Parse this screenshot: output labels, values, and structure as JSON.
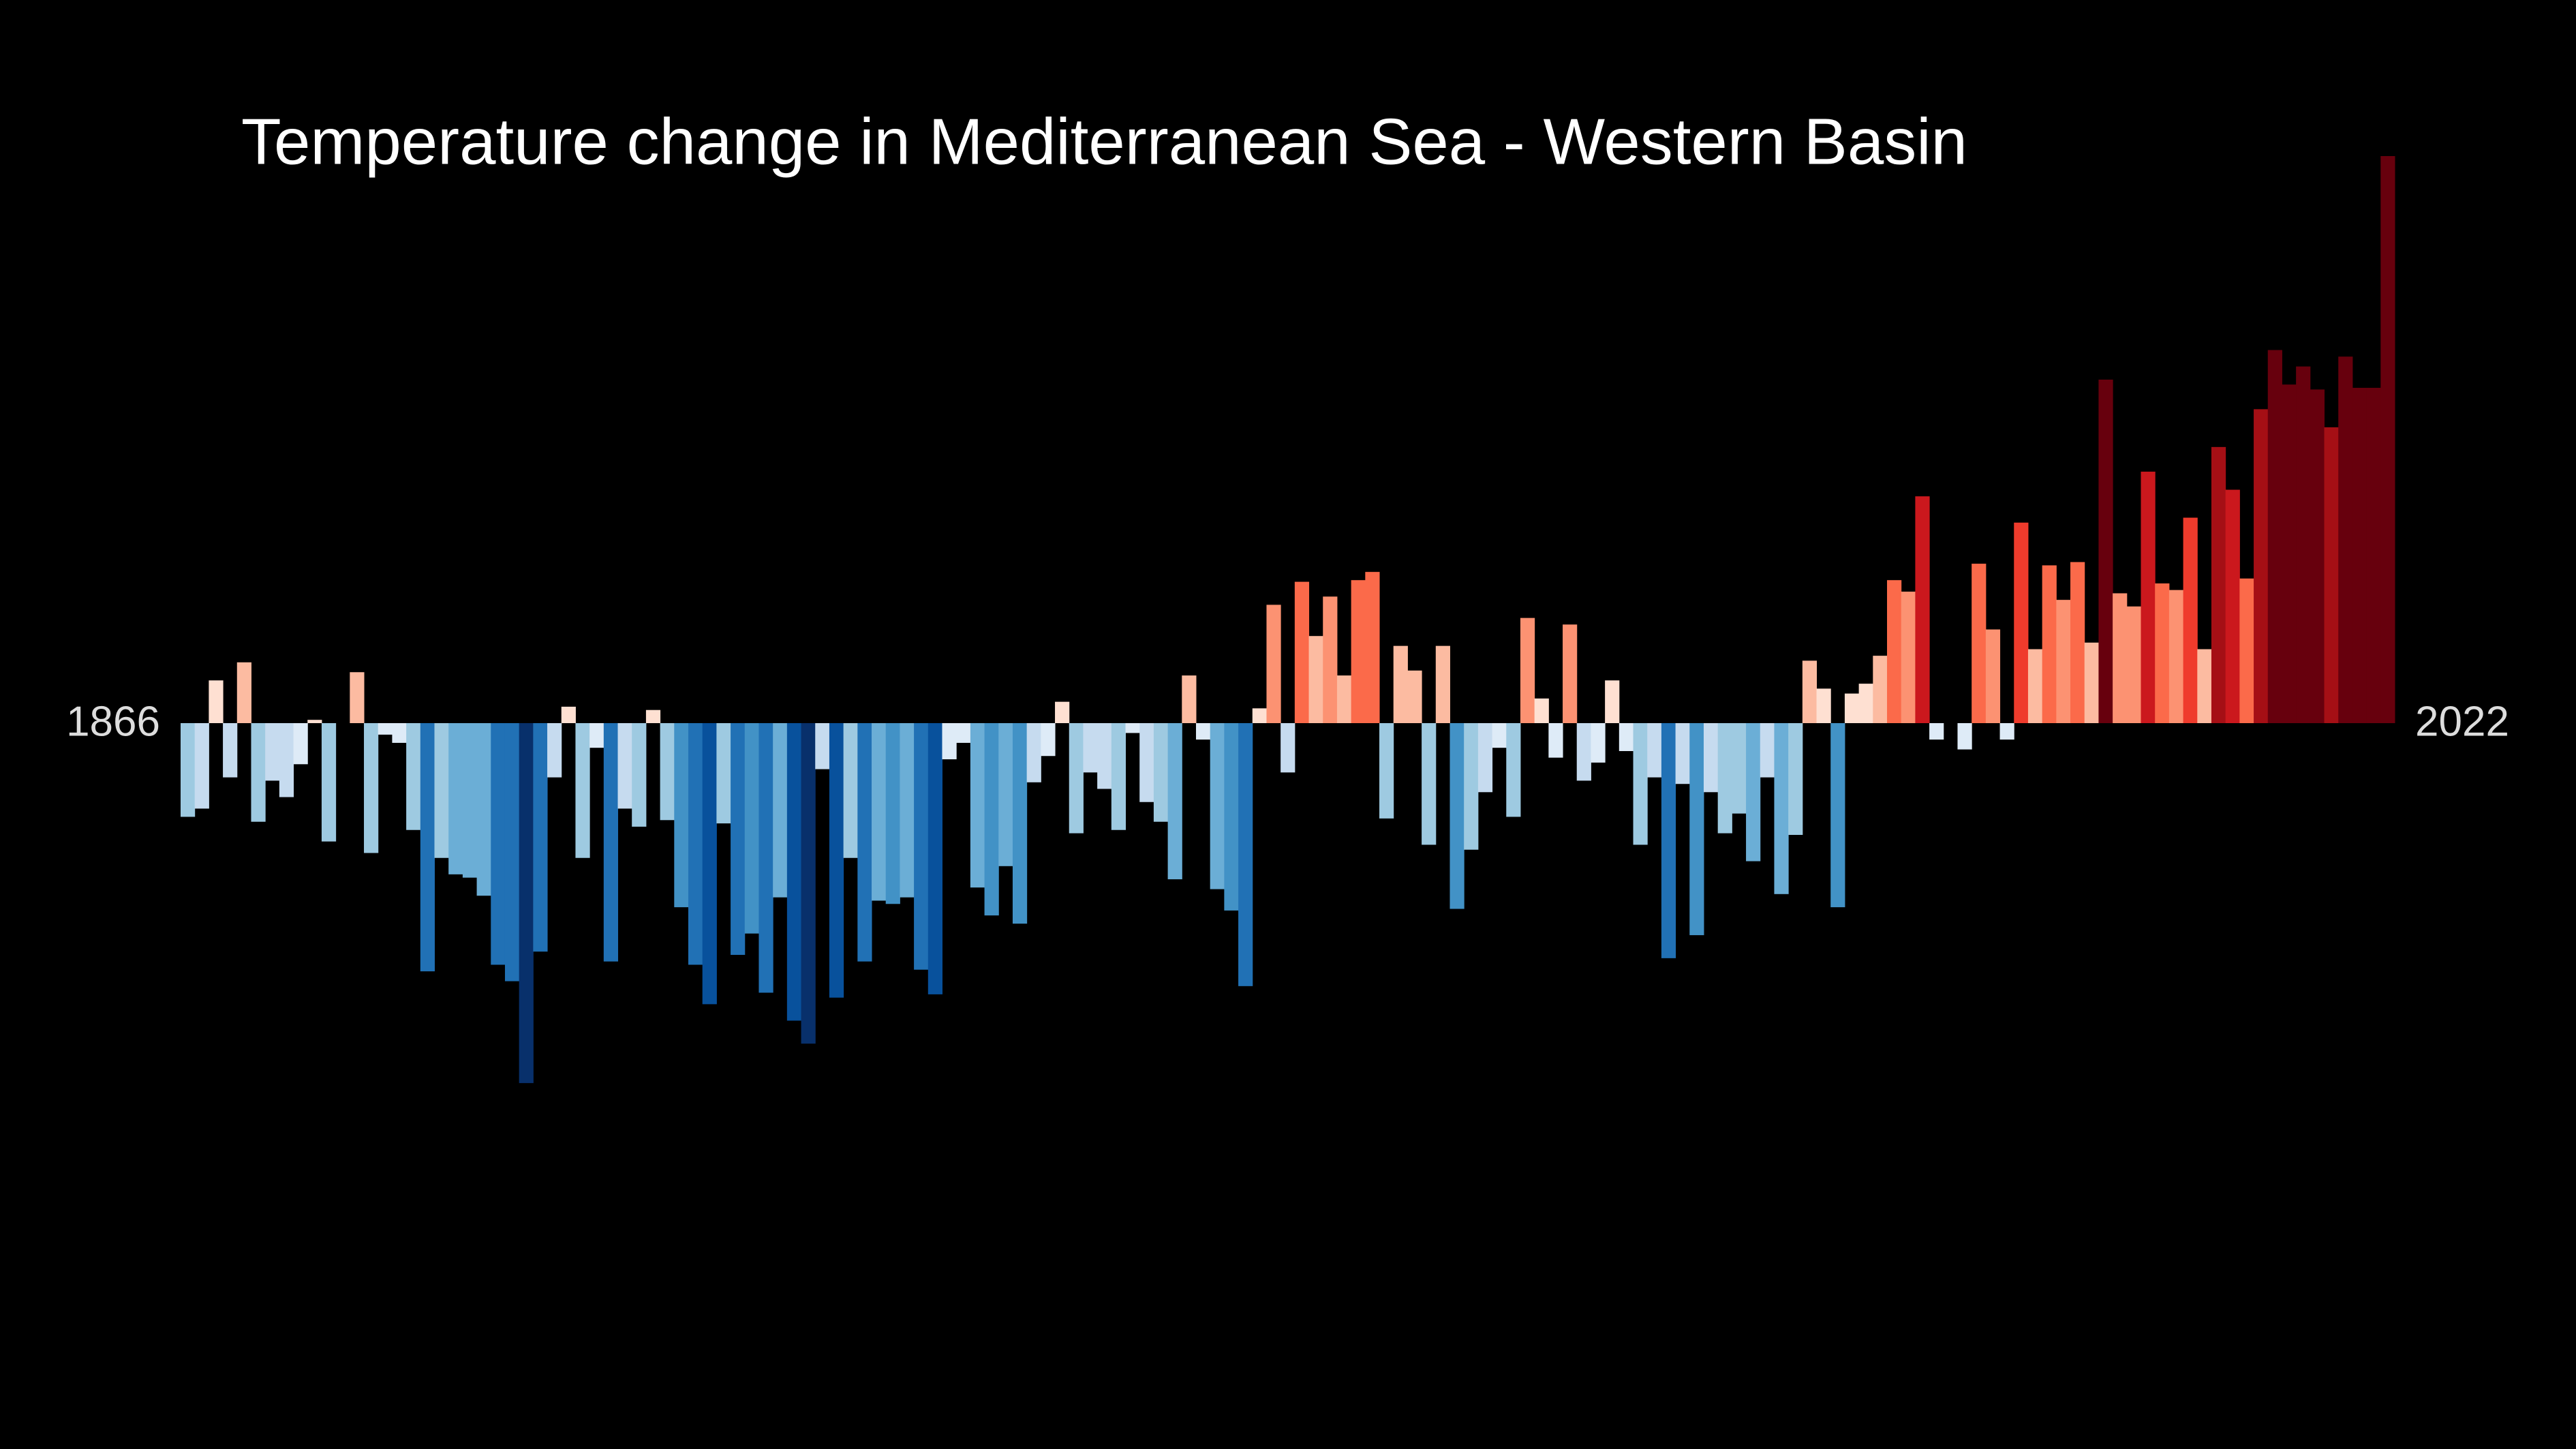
{
  "chart_data": {
    "type": "bar",
    "title": "Temperature change in Mediterranean Sea - Western Basin",
    "categories": [
      "1866",
      null,
      null,
      null,
      null,
      null,
      null,
      null,
      null,
      null,
      null,
      null,
      null,
      null,
      null,
      null,
      null,
      null,
      null,
      null,
      null,
      null,
      null,
      null,
      null,
      null,
      null,
      null,
      null,
      null,
      null,
      null,
      null,
      null,
      null,
      null,
      null,
      null,
      null,
      null,
      null,
      null,
      null,
      null,
      null,
      null,
      null,
      null,
      null,
      null,
      null,
      null,
      null,
      null,
      null,
      null,
      null,
      null,
      null,
      null,
      null,
      null,
      null,
      null,
      null,
      null,
      null,
      null,
      null,
      null,
      null,
      null,
      null,
      null,
      null,
      null,
      null,
      null,
      null,
      null,
      null,
      null,
      null,
      null,
      null,
      null,
      null,
      null,
      null,
      null,
      null,
      null,
      null,
      null,
      null,
      null,
      null,
      null,
      null,
      null,
      null,
      null,
      null,
      null,
      null,
      null,
      null,
      null,
      null,
      null,
      null,
      null,
      null,
      null,
      null,
      null,
      null,
      null,
      null,
      null,
      null,
      null,
      null,
      null,
      null,
      null,
      null,
      null,
      null,
      null,
      null,
      null,
      null,
      null,
      null,
      null,
      null,
      null,
      null,
      null,
      null,
      null,
      null,
      null,
      null,
      null,
      null,
      null,
      null,
      null,
      null,
      null,
      null,
      null,
      null,
      null,
      "2022"
    ],
    "values": [
      -0.57,
      -0.52,
      0.26,
      -0.33,
      0.37,
      -0.6,
      -0.35,
      -0.45,
      -0.25,
      0.02,
      -0.72,
      0.0,
      0.31,
      -0.79,
      -0.07,
      -0.12,
      -0.65,
      -1.51,
      -0.82,
      -0.92,
      -0.94,
      -1.05,
      -1.47,
      -1.57,
      -2.19,
      -1.39,
      -0.33,
      0.1,
      -0.82,
      -0.15,
      -1.45,
      -0.52,
      -0.63,
      0.08,
      -0.59,
      -1.12,
      -1.47,
      -1.71,
      -0.61,
      -1.41,
      -1.28,
      -1.64,
      -1.06,
      -1.81,
      -1.95,
      -0.28,
      -1.67,
      -0.82,
      -1.45,
      -1.08,
      -1.1,
      -1.06,
      -1.5,
      -1.65,
      -0.22,
      -0.12,
      -1.0,
      -1.17,
      -0.87,
      -1.22,
      -0.36,
      -0.2,
      0.13,
      -0.67,
      -0.3,
      -0.4,
      -0.65,
      -0.06,
      -0.48,
      -0.6,
      -0.95,
      0.29,
      -0.1,
      -1.01,
      -1.14,
      -1.6,
      0.09,
      0.72,
      -0.3,
      0.86,
      0.53,
      0.77,
      0.29,
      0.87,
      0.92,
      -0.58,
      0.47,
      0.32,
      -0.74,
      0.47,
      -1.13,
      -0.77,
      -0.42,
      -0.15,
      -0.57,
      0.64,
      0.15,
      -0.21,
      0.6,
      -0.35,
      -0.24,
      0.26,
      -0.17,
      -0.74,
      -0.33,
      -1.43,
      -0.37,
      -1.29,
      -0.42,
      -0.67,
      -0.55,
      -0.84,
      -0.33,
      -1.04,
      -0.68,
      0.38,
      0.21,
      -1.12,
      0.18,
      0.24,
      0.41,
      0.87,
      0.8,
      1.38,
      -0.1,
      0.0,
      -0.16,
      0.97,
      0.57,
      -0.1,
      1.22,
      0.45,
      0.96,
      0.75,
      0.98,
      0.49,
      2.09,
      0.79,
      0.71,
      1.53,
      0.85,
      0.81,
      1.25,
      0.45,
      1.68,
      1.42,
      0.88,
      1.91,
      2.27,
      2.06,
      2.17,
      2.03,
      1.8,
      2.23,
      2.04,
      2.04,
      3.45
    ],
    "colors": [
      "#08306b",
      "#08519c",
      "#2171b5",
      "#4292c6",
      "#6baed6",
      "#9ecae1",
      "#c6dbef",
      "#deebf7",
      "#fee0d2",
      "#fcbba1",
      "#fc9272",
      "#fb6a4a",
      "#ef3b2c",
      "#cb181d",
      "#a50f15",
      "#67000d"
    ],
    "background": "#000000"
  }
}
